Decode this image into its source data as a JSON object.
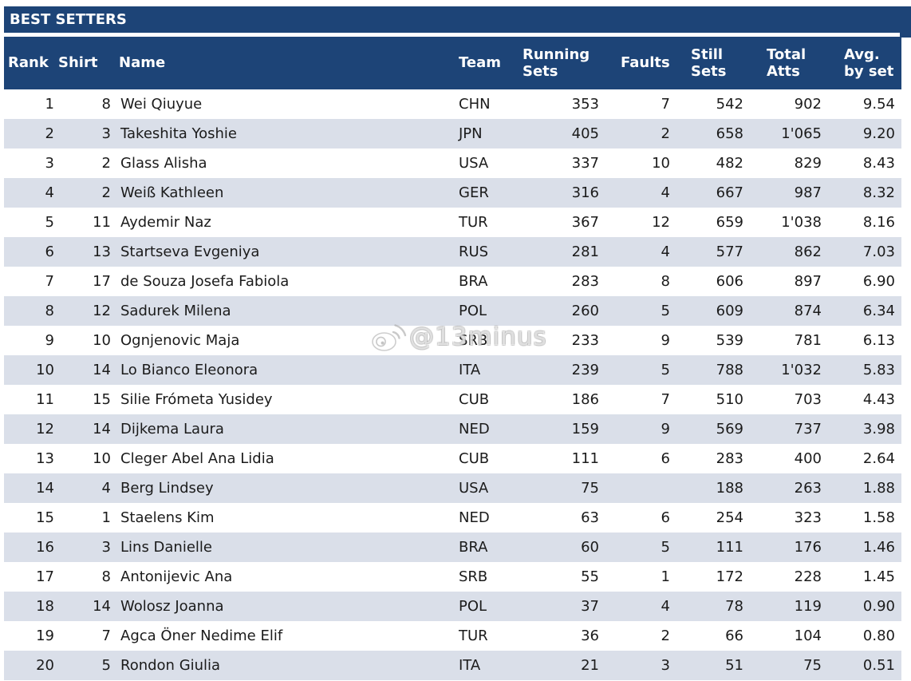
{
  "colors": {
    "header_bg": "#1d4477",
    "stripe_bg": "#dadfe9",
    "row_bg": "#ffffff",
    "body_text": "#1b1b1b",
    "header_text": "#ffffff"
  },
  "title_bar": {
    "title": "BEST SETTERS"
  },
  "table": {
    "headers": [
      {
        "key": "rank",
        "lines": [
          "Rank"
        ]
      },
      {
        "key": "shirt",
        "lines": [
          "Shirt"
        ]
      },
      {
        "key": "name",
        "lines": [
          "Name"
        ]
      },
      {
        "key": "team",
        "lines": [
          "Team"
        ]
      },
      {
        "key": "running_sets",
        "lines": [
          "Running",
          "Sets"
        ]
      },
      {
        "key": "faults",
        "lines": [
          "Faults"
        ]
      },
      {
        "key": "still_sets",
        "lines": [
          "Still",
          "Sets"
        ]
      },
      {
        "key": "total_atts",
        "lines": [
          "Total",
          "Atts"
        ]
      },
      {
        "key": "avg_by_set",
        "lines": [
          "Avg.",
          "by set"
        ]
      }
    ],
    "rows": [
      {
        "rank": "1",
        "shirt": "8",
        "name": "Wei Qiuyue",
        "team": "CHN",
        "running_sets": "353",
        "faults": "7",
        "still_sets": "542",
        "total_atts": "902",
        "avg_by_set": "9.54"
      },
      {
        "rank": "2",
        "shirt": "3",
        "name": "Takeshita Yoshie",
        "team": "JPN",
        "running_sets": "405",
        "faults": "2",
        "still_sets": "658",
        "total_atts": "1'065",
        "avg_by_set": "9.20"
      },
      {
        "rank": "3",
        "shirt": "2",
        "name": "Glass Alisha",
        "team": "USA",
        "running_sets": "337",
        "faults": "10",
        "still_sets": "482",
        "total_atts": "829",
        "avg_by_set": "8.43"
      },
      {
        "rank": "4",
        "shirt": "2",
        "name": "Weiß Kathleen",
        "team": "GER",
        "running_sets": "316",
        "faults": "4",
        "still_sets": "667",
        "total_atts": "987",
        "avg_by_set": "8.32"
      },
      {
        "rank": "5",
        "shirt": "11",
        "name": "Aydemir Naz",
        "team": "TUR",
        "running_sets": "367",
        "faults": "12",
        "still_sets": "659",
        "total_atts": "1'038",
        "avg_by_set": "8.16"
      },
      {
        "rank": "6",
        "shirt": "13",
        "name": "Startseva Evgeniya",
        "team": "RUS",
        "running_sets": "281",
        "faults": "4",
        "still_sets": "577",
        "total_atts": "862",
        "avg_by_set": "7.03"
      },
      {
        "rank": "7",
        "shirt": "17",
        "name": "de Souza Josefa Fabiola",
        "team": "BRA",
        "running_sets": "283",
        "faults": "8",
        "still_sets": "606",
        "total_atts": "897",
        "avg_by_set": "6.90"
      },
      {
        "rank": "8",
        "shirt": "12",
        "name": "Sadurek Milena",
        "team": "POL",
        "running_sets": "260",
        "faults": "5",
        "still_sets": "609",
        "total_atts": "874",
        "avg_by_set": "6.34"
      },
      {
        "rank": "9",
        "shirt": "10",
        "name": "Ognjenovic Maja",
        "team": "SRB",
        "running_sets": "233",
        "faults": "9",
        "still_sets": "539",
        "total_atts": "781",
        "avg_by_set": "6.13"
      },
      {
        "rank": "10",
        "shirt": "14",
        "name": "Lo Bianco Eleonora",
        "team": "ITA",
        "running_sets": "239",
        "faults": "5",
        "still_sets": "788",
        "total_atts": "1'032",
        "avg_by_set": "5.83"
      },
      {
        "rank": "11",
        "shirt": "15",
        "name": "Silie Frómeta Yusidey",
        "team": "CUB",
        "running_sets": "186",
        "faults": "7",
        "still_sets": "510",
        "total_atts": "703",
        "avg_by_set": "4.43"
      },
      {
        "rank": "12",
        "shirt": "14",
        "name": "Dijkema Laura",
        "team": "NED",
        "running_sets": "159",
        "faults": "9",
        "still_sets": "569",
        "total_atts": "737",
        "avg_by_set": "3.98"
      },
      {
        "rank": "13",
        "shirt": "10",
        "name": "Cleger Abel Ana Lidia",
        "team": "CUB",
        "running_sets": "111",
        "faults": "6",
        "still_sets": "283",
        "total_atts": "400",
        "avg_by_set": "2.64"
      },
      {
        "rank": "14",
        "shirt": "4",
        "name": "Berg Lindsey",
        "team": "USA",
        "running_sets": "75",
        "faults": "",
        "still_sets": "188",
        "total_atts": "263",
        "avg_by_set": "1.88"
      },
      {
        "rank": "15",
        "shirt": "1",
        "name": "Staelens Kim",
        "team": "NED",
        "running_sets": "63",
        "faults": "6",
        "still_sets": "254",
        "total_atts": "323",
        "avg_by_set": "1.58"
      },
      {
        "rank": "16",
        "shirt": "3",
        "name": "Lins Danielle",
        "team": "BRA",
        "running_sets": "60",
        "faults": "5",
        "still_sets": "111",
        "total_atts": "176",
        "avg_by_set": "1.46"
      },
      {
        "rank": "17",
        "shirt": "8",
        "name": "Antonijevic Ana",
        "team": "SRB",
        "running_sets": "55",
        "faults": "1",
        "still_sets": "172",
        "total_atts": "228",
        "avg_by_set": "1.45"
      },
      {
        "rank": "18",
        "shirt": "14",
        "name": "Wolosz Joanna",
        "team": "POL",
        "running_sets": "37",
        "faults": "4",
        "still_sets": "78",
        "total_atts": "119",
        "avg_by_set": "0.90"
      },
      {
        "rank": "19",
        "shirt": "7",
        "name": "Agca Öner Nedime Elif",
        "team": "TUR",
        "running_sets": "36",
        "faults": "2",
        "still_sets": "66",
        "total_atts": "104",
        "avg_by_set": "0.80"
      },
      {
        "rank": "20",
        "shirt": "5",
        "name": "Rondon Giulia",
        "team": "ITA",
        "running_sets": "21",
        "faults": "3",
        "still_sets": "51",
        "total_atts": "75",
        "avg_by_set": "0.51"
      }
    ]
  },
  "watermark": {
    "icon": "weibo-icon",
    "text": "@13minus"
  }
}
